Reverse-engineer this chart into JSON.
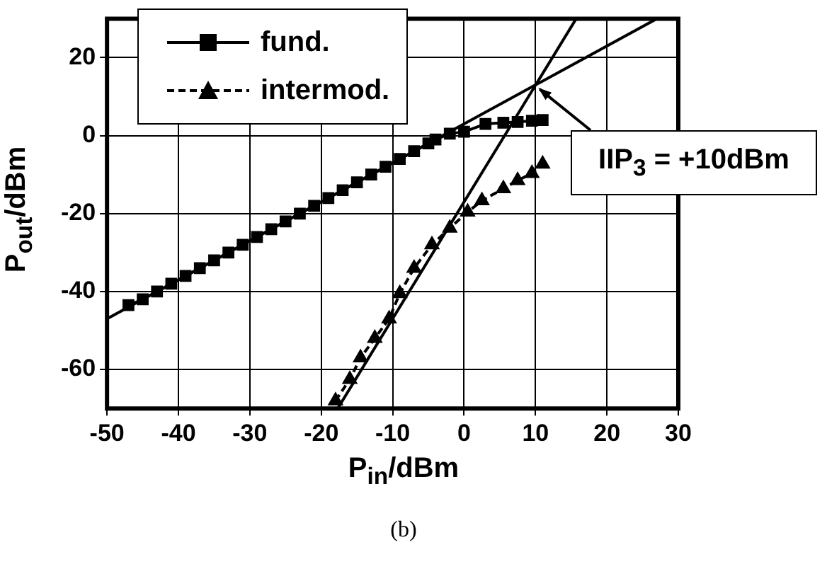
{
  "chart_data": {
    "type": "scatter",
    "xlabel": "P$_{in}$/dBm",
    "ylabel": "P$_{out}$/dBm",
    "xlim": [
      -50,
      30
    ],
    "xticks": [
      -50,
      -40,
      -30,
      -20,
      -10,
      0,
      10,
      20,
      30
    ],
    "ylim": [
      -70,
      30
    ],
    "yticks": [
      -60,
      -40,
      -20,
      0,
      20
    ],
    "grid": true,
    "legend": "top left",
    "series": [
      {
        "name": "fund.",
        "type": "line",
        "marker": "square",
        "line_style": "solid",
        "color": "#000000",
        "x": [
          -47,
          -45,
          -43,
          -41,
          -39,
          -37,
          -35,
          -33,
          -31,
          -29,
          -27,
          -25,
          -23,
          -21,
          -19,
          -17,
          -15,
          -13,
          -11,
          -9,
          -7,
          -5,
          -4,
          -2,
          0,
          3,
          5.5,
          7.5,
          9.5,
          11
        ],
        "values": [
          -43.5,
          -42,
          -40,
          -38,
          -36,
          -34,
          -32,
          -30,
          -28,
          -26,
          -24,
          -22,
          -20,
          -18,
          -16,
          -14,
          -12,
          -10,
          -8,
          -6,
          -4,
          -2,
          -1,
          0.5,
          1,
          3,
          3.3,
          3.5,
          3.8,
          4
        ]
      },
      {
        "name": "intermod.",
        "type": "line",
        "marker": "triangle",
        "line_style": "dashed",
        "color": "#000000",
        "x": [
          -18,
          -16,
          -14.5,
          -12.5,
          -10.5,
          -9,
          -7,
          -4.5,
          -2,
          0.5,
          2.5,
          5.5,
          7.5,
          9.5,
          11
        ],
        "values": [
          -68,
          -62.5,
          -57,
          -52,
          -47,
          -40.5,
          -34,
          -28,
          -23.7,
          -19.6,
          -16.7,
          -13.6,
          -11.5,
          -9.7,
          -7.3
        ]
      },
      {
        "type": "line",
        "marker": "none",
        "line_style": "solid",
        "color": "#000000",
        "x": [
          -50,
          27
        ],
        "values": [
          -47,
          30
        ]
      },
      {
        "type": "line",
        "marker": "none",
        "line_style": "solid",
        "color": "#000000",
        "x": [
          -17.7,
          15.7
        ],
        "values": [
          -70,
          30
        ]
      }
    ],
    "annotations": [
      {
        "text": "IIP$_{3}$ = +10dBm",
        "x": 10,
        "y": 13
      },
      "(b)"
    ]
  }
}
